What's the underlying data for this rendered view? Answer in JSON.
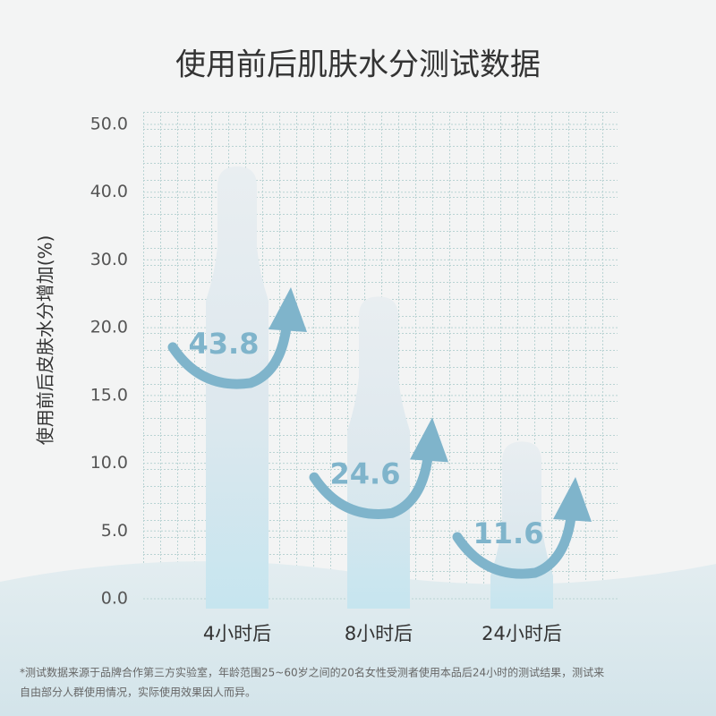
{
  "chart_data": {
    "type": "bar",
    "title": "使用前后肌肤水分测试数据",
    "y_label": "使用前后皮肤水分增加(%)",
    "categories": [
      "4小时后",
      "8小时后",
      "24小时后"
    ],
    "values": [
      43.8,
      24.6,
      11.6
    ],
    "color": "#7fb4cb",
    "yticks": [
      {
        "value": 0,
        "label": "0.0"
      },
      {
        "value": 5,
        "label": "5.0"
      },
      {
        "value": 10,
        "label": "10.0"
      },
      {
        "value": 15,
        "label": "15.0"
      },
      {
        "value": 20,
        "label": "20.0"
      },
      {
        "value": 30,
        "label": "30.0"
      },
      {
        "value": 40,
        "label": "40.0"
      },
      {
        "value": 50,
        "label": "50.0"
      }
    ],
    "ylim": [
      0,
      50
    ],
    "grid": true,
    "footnote": [
      "*测试数据来源于品牌合作第三方实验室，年龄范围25~60岁之间的20名女性受测者使用本品后24小时的测试结果，测试来",
      "自由部分人群使用情况，实际使用效果因人而异。"
    ]
  }
}
